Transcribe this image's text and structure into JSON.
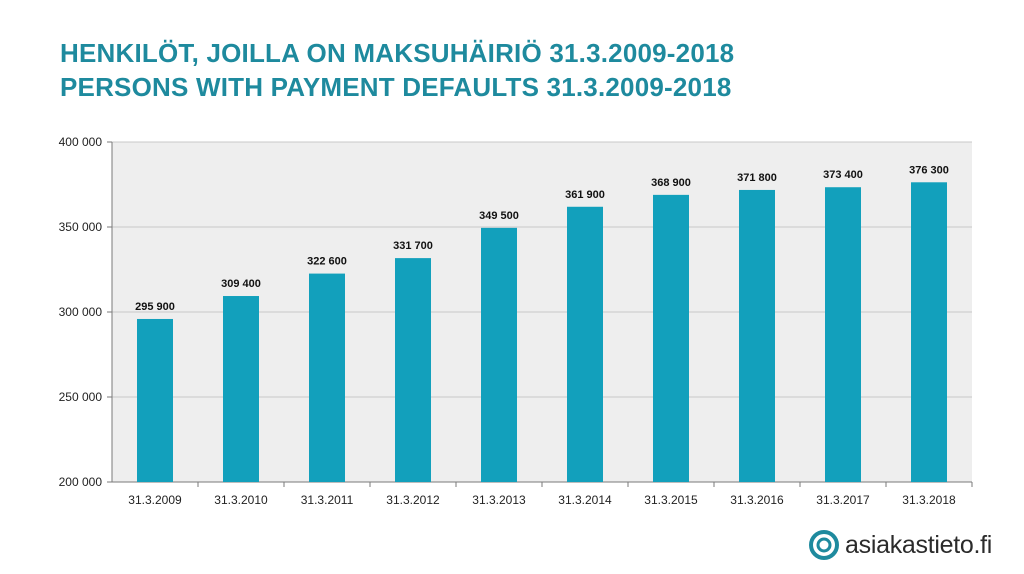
{
  "header": {
    "title_fi": "HENKILÖT, JOILLA ON MAKSUHÄIRIÖ 31.3.2009-2018",
    "title_en": "PERSONS WITH PAYMENT DEFAULTS 31.3.2009-2018"
  },
  "logo": {
    "text": "asiakastieto.fi"
  },
  "colors": {
    "accent": "#1e8a9e",
    "bar": "#12a0bc",
    "plot_bg": "#eeeeee"
  },
  "chart_data": {
    "type": "bar",
    "categories": [
      "31.3.2009",
      "31.3.2010",
      "31.3.2011",
      "31.3.2012",
      "31.3.2013",
      "31.3.2014",
      "31.3.2015",
      "31.3.2016",
      "31.3.2017",
      "31.3.2018"
    ],
    "values": [
      295900,
      309400,
      322600,
      331700,
      349500,
      361900,
      368900,
      371800,
      373400,
      376300
    ],
    "value_labels": [
      "295 900",
      "309 400",
      "322 600",
      "331 700",
      "349 500",
      "361 900",
      "368 900",
      "371 800",
      "373 400",
      "376 300"
    ],
    "ylim": [
      200000,
      400000
    ],
    "yticks": [
      200000,
      250000,
      300000,
      350000,
      400000
    ],
    "ytick_labels": [
      "200 000",
      "250 000",
      "300 000",
      "350 000",
      "400 000"
    ],
    "grid": true
  }
}
